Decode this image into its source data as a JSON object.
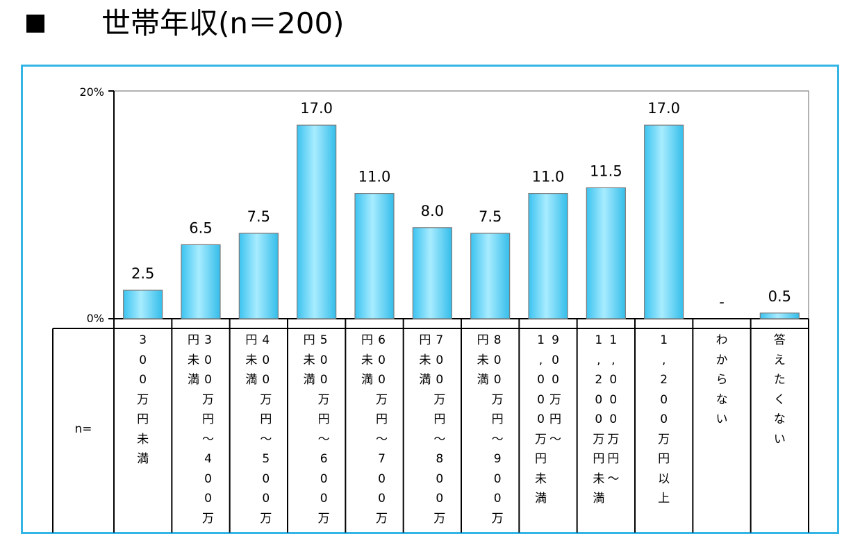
{
  "header": {
    "marker": "■",
    "title": "世帯年収(n＝200)"
  },
  "table": {
    "n_label": "n="
  },
  "chart_data": {
    "type": "bar",
    "title": "世帯年収(n＝200)",
    "categories": [
      "300万円未満",
      "300万円〜400万円未満",
      "400万円〜500万円未満",
      "500万円〜600万円未満",
      "600万円〜700万円未満",
      "700万円〜800万円未満",
      "800万円〜900万円未満",
      "900万円〜1,000万円未満",
      "1,000万円〜1,200万円未満",
      "1,200万円以上",
      "わからない",
      "答えたくない"
    ],
    "values": [
      2.5,
      6.5,
      7.5,
      17.0,
      11.0,
      8.0,
      7.5,
      11.0,
      11.5,
      17.0,
      0,
      0.5
    ],
    "value_labels": [
      "2.5",
      "6.5",
      "7.5",
      "17.0",
      "11.0",
      "8.0",
      "7.5",
      "11.0",
      "11.5",
      "17.0",
      "-",
      "0.5"
    ],
    "category_columns": [
      [
        [
          "3",
          "0",
          "0",
          "万",
          "円",
          "未",
          "満"
        ]
      ],
      [
        [
          "3",
          "0",
          "0",
          "万",
          "円",
          "〜",
          "4",
          "0",
          "0",
          "万"
        ],
        [
          "円",
          "未",
          "満"
        ]
      ],
      [
        [
          "4",
          "0",
          "0",
          "万",
          "円",
          "〜",
          "5",
          "0",
          "0",
          "万"
        ],
        [
          "円",
          "未",
          "満"
        ]
      ],
      [
        [
          "5",
          "0",
          "0",
          "万",
          "円",
          "〜",
          "6",
          "0",
          "0",
          "万"
        ],
        [
          "円",
          "未",
          "満"
        ]
      ],
      [
        [
          "6",
          "0",
          "0",
          "万",
          "円",
          "〜",
          "7",
          "0",
          "0",
          "万"
        ],
        [
          "円",
          "未",
          "満"
        ]
      ],
      [
        [
          "7",
          "0",
          "0",
          "万",
          "円",
          "〜",
          "8",
          "0",
          "0",
          "万"
        ],
        [
          "円",
          "未",
          "満"
        ]
      ],
      [
        [
          "8",
          "0",
          "0",
          "万",
          "円",
          "〜",
          "9",
          "0",
          "0",
          "万"
        ],
        [
          "円",
          "未",
          "満"
        ]
      ],
      [
        [
          "9",
          "0",
          "0",
          "万",
          "円",
          "〜"
        ],
        [
          "1",
          ",",
          "0",
          "0",
          "0",
          "万",
          "円",
          "未",
          "満"
        ]
      ],
      [
        [
          "1",
          ",",
          "0",
          "0",
          "0",
          "万",
          "円",
          "〜"
        ],
        [
          "1",
          ",",
          "2",
          "0",
          "0",
          "万",
          "円",
          "未",
          "満"
        ]
      ],
      [
        [
          "1",
          ",",
          "2",
          "0",
          "0",
          "万",
          "円",
          "以",
          "上"
        ]
      ],
      [
        [
          "わ",
          "か",
          "ら",
          "な",
          "い"
        ]
      ],
      [
        [
          "答",
          "え",
          "た",
          "く",
          "な",
          "い"
        ]
      ]
    ],
    "y_ticks": [
      "0%",
      "20%"
    ],
    "ylim": [
      0,
      20
    ],
    "xlabel": "",
    "ylabel": "",
    "bar_color": "#5cd0f5",
    "frame_color": "#33b5e5"
  }
}
